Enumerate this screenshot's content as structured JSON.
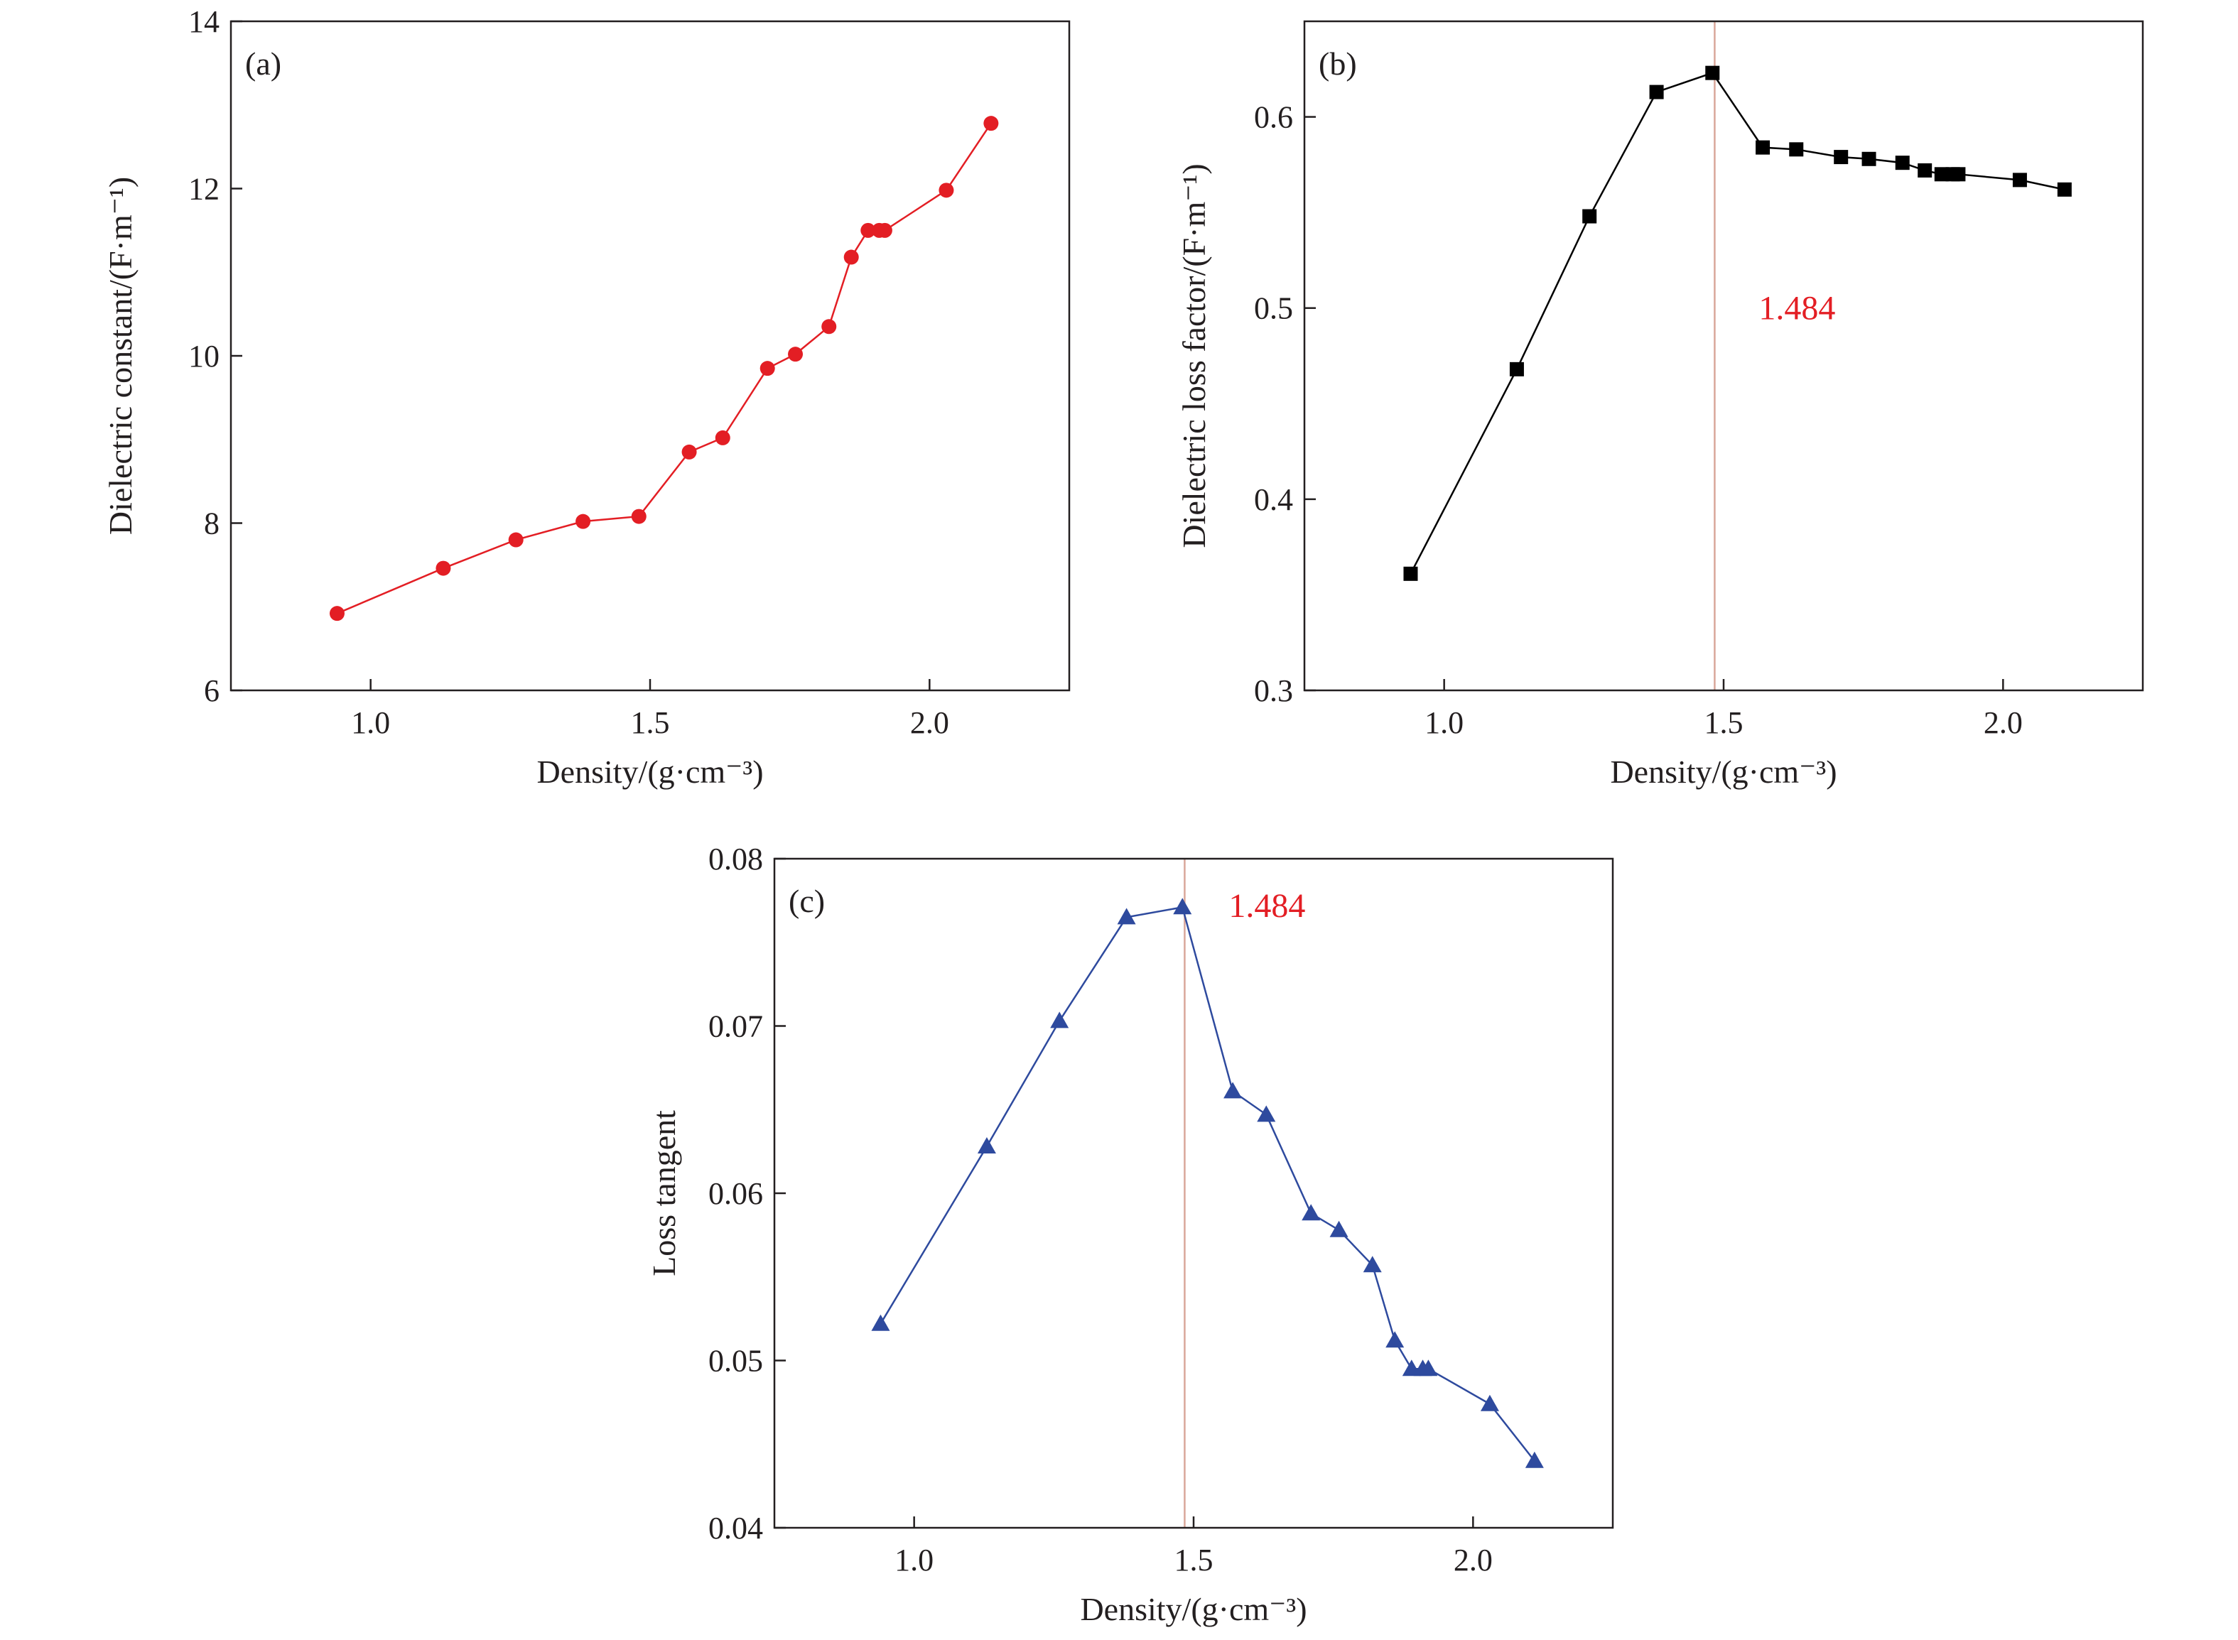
{
  "chart_data": [
    {
      "type": "line",
      "panel_label": "(a)",
      "xlabel": "Density/(g·cm⁻³)",
      "ylabel": "Dielectric constant/(F·m⁻¹)",
      "xlim": [
        0.75,
        2.25
      ],
      "ylim": [
        6,
        14
      ],
      "xticks": [
        1.0,
        1.5,
        2.0
      ],
      "xtick_labels": [
        "1.0",
        "1.5",
        "2.0"
      ],
      "yticks": [
        6,
        8,
        10,
        12,
        14
      ],
      "ytick_labels": [
        "6",
        "8",
        "10",
        "12",
        "14"
      ],
      "marker": "circle",
      "color": "#e31e24",
      "grid": false,
      "x": [
        0.94,
        1.13,
        1.26,
        1.38,
        1.48,
        1.57,
        1.63,
        1.71,
        1.76,
        1.82,
        1.86,
        1.89,
        1.91,
        1.92,
        2.03,
        2.11
      ],
      "y": [
        6.92,
        7.46,
        7.8,
        8.02,
        8.08,
        8.85,
        9.02,
        9.85,
        10.02,
        10.35,
        11.18,
        11.5,
        11.5,
        11.5,
        11.98,
        12.78
      ]
    },
    {
      "type": "line",
      "panel_label": "(b)",
      "xlabel": "Density/(g·cm⁻³)",
      "ylabel": "Dielectric loss factor/(F·m⁻¹)",
      "xlim": [
        0.75,
        2.25
      ],
      "ylim": [
        0.3,
        0.65
      ],
      "xticks": [
        1.0,
        1.5,
        2.0
      ],
      "xtick_labels": [
        "1.0",
        "1.5",
        "2.0"
      ],
      "yticks": [
        0.3,
        0.4,
        0.5,
        0.6
      ],
      "ytick_labels": [
        "0.3",
        "0.4",
        "0.5",
        "0.6"
      ],
      "marker": "square",
      "color": "#000000",
      "grid": false,
      "vline": {
        "x": 1.484,
        "label": "1.484",
        "color": "#d9a79a",
        "label_color": "#e31e24",
        "label_y": 0.5
      },
      "x": [
        0.94,
        1.13,
        1.26,
        1.38,
        1.48,
        1.57,
        1.63,
        1.71,
        1.76,
        1.82,
        1.86,
        1.89,
        1.91,
        1.92,
        2.03,
        2.11
      ],
      "y": [
        0.361,
        0.468,
        0.548,
        0.613,
        0.623,
        0.584,
        0.583,
        0.579,
        0.578,
        0.576,
        0.572,
        0.57,
        0.57,
        0.57,
        0.567,
        0.562
      ]
    },
    {
      "type": "line",
      "panel_label": "(c)",
      "xlabel": "Density/(g·cm⁻³)",
      "ylabel": "Loss tangent",
      "xlim": [
        0.75,
        2.25
      ],
      "ylim": [
        0.04,
        0.08
      ],
      "xticks": [
        1.0,
        1.5,
        2.0
      ],
      "xtick_labels": [
        "1.0",
        "1.5",
        "2.0"
      ],
      "yticks": [
        0.04,
        0.05,
        0.06,
        0.07,
        0.08
      ],
      "ytick_labels": [
        "0.04",
        "0.05",
        "0.06",
        "0.07",
        "0.08"
      ],
      "marker": "triangle",
      "color": "#2e4a9e",
      "grid": false,
      "vline": {
        "x": 1.484,
        "label": "1.484",
        "color": "#d9a79a",
        "label_color": "#e31e24",
        "label_y": 0.0772
      },
      "x": [
        0.94,
        1.13,
        1.26,
        1.38,
        1.48,
        1.57,
        1.63,
        1.71,
        1.76,
        1.82,
        1.86,
        1.89,
        1.91,
        1.92,
        2.03,
        2.11
      ],
      "y": [
        0.0522,
        0.0628,
        0.0703,
        0.0765,
        0.0771,
        0.0661,
        0.0647,
        0.0588,
        0.0578,
        0.0557,
        0.0512,
        0.0495,
        0.0495,
        0.0495,
        0.0474,
        0.044
      ]
    }
  ]
}
